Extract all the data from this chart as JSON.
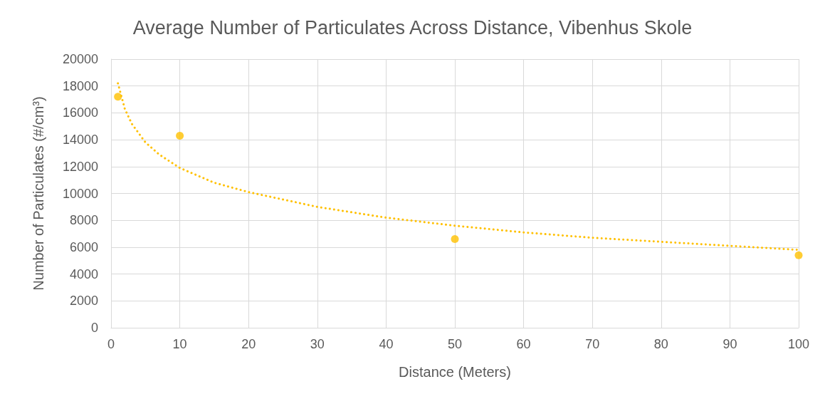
{
  "chart_data": {
    "type": "scatter",
    "title": "Average Number of Particulates Across Distance, Vibenhus Skole",
    "xlabel": "Distance (Meters)",
    "ylabel": "Number of Particulates (#/cm³)",
    "series": [
      {
        "color": "#ffc000",
        "marker": "circle",
        "x": [
          1,
          10,
          50,
          100
        ],
        "values": [
          17200,
          14300,
          6600,
          5400
        ]
      },
      {
        "type": "line",
        "color": "#ffc000",
        "marker": "none",
        "line_style": "dotted",
        "x": [
          1,
          2,
          3,
          5,
          7,
          10,
          15,
          20,
          30,
          40,
          50,
          60,
          70,
          80,
          90,
          100
        ],
        "values": [
          18200,
          16300,
          15200,
          13800,
          12900,
          11900,
          10800,
          10100,
          9000,
          8200,
          7600,
          7100,
          6700,
          6400,
          6100,
          5800
        ]
      }
    ],
    "xlim": [
      0,
      100
    ],
    "xticks": [
      0,
      10,
      20,
      30,
      40,
      50,
      60,
      70,
      80,
      90,
      100
    ],
    "ylim": [
      0,
      20000
    ],
    "yticks": [
      0,
      2000,
      4000,
      6000,
      8000,
      10000,
      12000,
      14000,
      16000,
      18000,
      20000
    ],
    "grid": true
  }
}
